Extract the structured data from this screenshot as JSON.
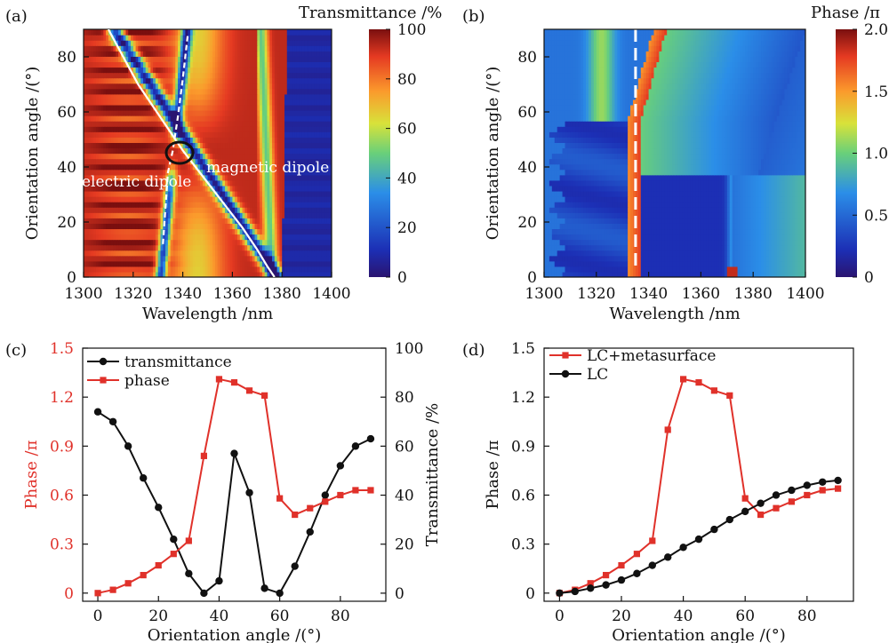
{
  "chart_data": [
    {
      "panel": "(a)",
      "type": "heatmap",
      "title": "",
      "xlabel": "Wavelength /nm",
      "ylabel": "Orientation angle /(°)",
      "xlim": [
        1300,
        1400
      ],
      "ylim": [
        0,
        90
      ],
      "xticks": [
        "1300",
        "1320",
        "1340",
        "1360",
        "1380",
        "1400"
      ],
      "yticks": [
        "0",
        "20",
        "40",
        "60",
        "80"
      ],
      "colorbar": {
        "label": "Transmittance /%",
        "range": [
          0,
          100
        ],
        "ticks": [
          "0",
          "20",
          "40",
          "60",
          "80",
          "100"
        ]
      },
      "annotations": [
        "electric dipole",
        "magnetic dipole"
      ],
      "curves": {
        "magnetic_dipole": {
          "x": [
            1310,
            1316,
            1322,
            1328,
            1334,
            1340,
            1346,
            1352,
            1358,
            1364,
            1370,
            1374,
            1377
          ],
          "y": [
            90,
            80,
            70,
            62,
            54,
            46,
            39,
            32,
            25,
            18,
            10,
            4,
            0
          ]
        },
        "electric_dipole": {
          "x": [
            1332,
            1333,
            1334,
            1336,
            1338,
            1340,
            1342
          ],
          "y": [
            12,
            25,
            38,
            46,
            58,
            72,
            88
          ]
        },
        "crossing_marker": {
          "x": 1339,
          "y": 45
        }
      }
    },
    {
      "panel": "(b)",
      "type": "heatmap",
      "title": "",
      "xlabel": "Wavelength /nm",
      "ylabel": "Orientation angle /(°)",
      "xlim": [
        1300,
        1400
      ],
      "ylim": [
        0,
        90
      ],
      "xticks": [
        "1300",
        "1320",
        "1340",
        "1360",
        "1380",
        "1400"
      ],
      "yticks": [
        "0",
        "20",
        "40",
        "60",
        "80"
      ],
      "colorbar": {
        "label": "Phase /π",
        "range": [
          0,
          2
        ],
        "ticks": [
          "0",
          "0.5",
          "1.0",
          "1.5",
          "2.0"
        ]
      },
      "marker_line_x": 1335
    },
    {
      "panel": "(c)",
      "type": "line",
      "xlabel": "Orientation angle /(°)",
      "ylabel_left": "Phase /π",
      "ylabel_right": "Transmittance /%",
      "xlim": [
        -5,
        95
      ],
      "ylim_left": [
        -0.05,
        1.5
      ],
      "ylim_right": [
        -3.3,
        100
      ],
      "xticks": [
        "0",
        "20",
        "40",
        "60",
        "80"
      ],
      "yticks_left": [
        "0",
        "0.3",
        "0.6",
        "0.9",
        "1.2",
        "1.5"
      ],
      "yticks_right": [
        "0",
        "20",
        "40",
        "60",
        "80",
        "100"
      ],
      "x": [
        0,
        5,
        10,
        15,
        20,
        25,
        30,
        35,
        40,
        45,
        50,
        55,
        60,
        65,
        70,
        75,
        80,
        85,
        90
      ],
      "series": [
        {
          "name": "transmittance",
          "axis": "right",
          "color": "#111111",
          "marker": "circle",
          "values": [
            74,
            70,
            60,
            47,
            35,
            22,
            8,
            0,
            5,
            57,
            41,
            2,
            0,
            11,
            25,
            40,
            52,
            60,
            63
          ]
        },
        {
          "name": "phase",
          "axis": "left",
          "color": "#e0312a",
          "marker": "square",
          "values": [
            0.0,
            0.02,
            0.06,
            0.11,
            0.17,
            0.24,
            0.32,
            0.84,
            1.31,
            1.29,
            1.24,
            1.21,
            0.58,
            0.48,
            0.52,
            0.56,
            0.6,
            0.63,
            0.63
          ]
        }
      ],
      "legend": [
        "transmittance",
        "phase"
      ]
    },
    {
      "panel": "(d)",
      "type": "line",
      "xlabel": "Orientation angle /(°)",
      "ylabel": "Phase /π",
      "xlim": [
        -5,
        95
      ],
      "ylim": [
        -0.05,
        1.5
      ],
      "xticks": [
        "0",
        "20",
        "40",
        "60",
        "80"
      ],
      "yticks": [
        "0",
        "0.3",
        "0.6",
        "0.9",
        "1.2",
        "1.5"
      ],
      "x": [
        0,
        5,
        10,
        15,
        20,
        25,
        30,
        35,
        40,
        45,
        50,
        55,
        60,
        65,
        70,
        75,
        80,
        85,
        90
      ],
      "series": [
        {
          "name": "LC+metasurface",
          "color": "#e0312a",
          "marker": "square",
          "values": [
            0.0,
            0.02,
            0.06,
            0.11,
            0.17,
            0.24,
            0.32,
            1.0,
            1.31,
            1.29,
            1.24,
            1.21,
            0.58,
            0.48,
            0.52,
            0.56,
            0.6,
            0.63,
            0.64
          ]
        },
        {
          "name": "LC",
          "color": "#111111",
          "marker": "circle",
          "values": [
            0.0,
            0.01,
            0.03,
            0.05,
            0.08,
            0.12,
            0.17,
            0.22,
            0.28,
            0.33,
            0.39,
            0.45,
            0.5,
            0.55,
            0.6,
            0.63,
            0.66,
            0.68,
            0.69
          ]
        }
      ],
      "legend": [
        "LC+metasurface",
        "LC"
      ]
    }
  ]
}
